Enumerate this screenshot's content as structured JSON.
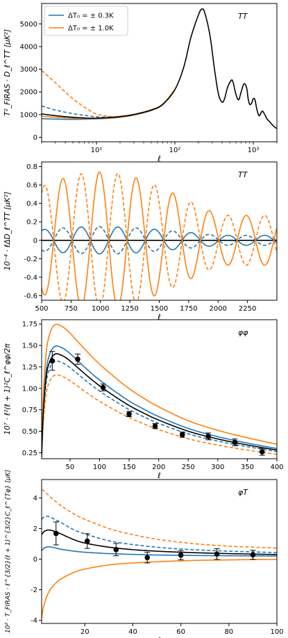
{
  "colors": {
    "blue": "#1f77b4",
    "orange": "#ff7f0e",
    "black": "#000000"
  },
  "chart_data": [
    {
      "type": "line",
      "tag": "TT",
      "xlabel": "ℓ",
      "ylabel": "T²_FIRAS · D_ℓ^TT [μK²]",
      "xscale": "log",
      "xlim": [
        2,
        2000
      ],
      "ylim": [
        -200,
        5900
      ],
      "xticks": [
        {
          "v": 10,
          "label": "10¹"
        },
        {
          "v": 100,
          "label": "10²"
        },
        {
          "v": 1000,
          "label": "10³"
        }
      ],
      "yticks": [
        0,
        1000,
        2000,
        3000,
        4000,
        5000
      ],
      "legend": {
        "placement": "top-left",
        "entries": [
          {
            "label": "ΔT₀ = ± 0.3K",
            "color": "blue"
          },
          {
            "label": "ΔT₀ = ± 1.0K",
            "color": "orange"
          }
        ]
      },
      "series": [
        {
          "color": "black",
          "dash": false,
          "x": [
            2,
            3,
            5,
            8,
            10,
            15,
            20,
            30,
            50,
            70,
            100,
            130,
            160,
            200,
            220,
            240,
            280,
            320,
            360,
            400,
            430,
            470,
            520,
            550,
            600,
            650,
            700,
            760,
            820,
            860,
            900,
            950,
            1000,
            1050,
            1100,
            1150,
            1200,
            1300,
            1400,
            1500,
            1600,
            1800,
            2000
          ],
          "y": [
            1030,
            950,
            880,
            840,
            840,
            870,
            910,
            1000,
            1200,
            1450,
            2100,
            3100,
            4400,
            5400,
            5650,
            5500,
            4500,
            3000,
            1900,
            1550,
            1700,
            2200,
            2500,
            2450,
            1900,
            1650,
            2000,
            2350,
            2200,
            1700,
            1450,
            1500,
            1700,
            1650,
            1300,
            1050,
            950,
            1150,
            1000,
            800,
            700,
            500,
            380
          ]
        },
        {
          "color": "blue",
          "dash": false,
          "x": [
            2,
            3,
            5,
            8,
            10,
            15,
            20,
            30,
            50,
            70,
            100
          ],
          "y": [
            820,
            800,
            790,
            800,
            810,
            840,
            880,
            980,
            1180,
            1440,
            2100
          ]
        },
        {
          "color": "blue",
          "dash": true,
          "x": [
            2,
            3,
            5,
            8,
            10,
            15,
            20,
            30,
            50,
            70,
            100
          ],
          "y": [
            1380,
            1200,
            1040,
            940,
            900,
            890,
            920,
            1010,
            1210,
            1460,
            2100
          ]
        },
        {
          "color": "orange",
          "dash": false,
          "x": [
            2,
            3,
            5,
            8,
            10,
            15,
            20,
            30,
            50,
            70,
            100
          ],
          "y": [
            930,
            880,
            840,
            820,
            820,
            850,
            890,
            990,
            1190,
            1440,
            2100
          ]
        },
        {
          "color": "orange",
          "dash": true,
          "x": [
            2,
            3,
            5,
            8,
            10,
            15,
            20,
            30,
            50,
            70,
            100
          ],
          "y": [
            2950,
            2400,
            1700,
            1200,
            1030,
            920,
            930,
            1010,
            1210,
            1460,
            2100
          ]
        }
      ]
    },
    {
      "type": "line",
      "tag": "TT",
      "xlabel": "ℓ",
      "ylabel": "10⁻⁴ · ℓΔD_ℓ^TT [μK²]",
      "xlim": [
        500,
        2500
      ],
      "ylim": [
        -0.65,
        0.85
      ],
      "xticks": [
        {
          "v": 500,
          "label": "500"
        },
        {
          "v": 750,
          "label": "750"
        },
        {
          "v": 1000,
          "label": "1000"
        },
        {
          "v": 1250,
          "label": "1250"
        },
        {
          "v": 1500,
          "label": "1500"
        },
        {
          "v": 1750,
          "label": "1750"
        },
        {
          "v": 2000,
          "label": "2000"
        },
        {
          "v": 2250,
          "label": "2250"
        }
      ],
      "yticks": [
        -0.6,
        -0.4,
        -0.2,
        0.0,
        0.2,
        0.4,
        0.6,
        0.8
      ],
      "wave": {
        "period": 312,
        "phase_x": 836,
        "env_peak": 0.74,
        "env_center": 1000,
        "env_min": 0.27
      },
      "series": [
        {
          "name": "",
          "color": "black",
          "dash": false,
          "osc": 0
        },
        {
          "color": "blue",
          "dash": false,
          "osc": 0.2,
          "sign": 1
        },
        {
          "color": "blue",
          "dash": true,
          "osc": 0.2,
          "sign": -1
        },
        {
          "color": "orange",
          "dash": false,
          "osc": 1.0,
          "sign": -1
        },
        {
          "color": "orange",
          "dash": true,
          "osc": 1.0,
          "sign": 1
        }
      ]
    },
    {
      "type": "line",
      "tag": "φφ",
      "xlabel": "ℓ",
      "ylabel": "10⁷ · ℓ²(ℓ + 1)²C_ℓ^φφ/2π",
      "xlim": [
        2,
        400
      ],
      "ylim": [
        0.18,
        1.8
      ],
      "xticks": [
        {
          "v": 50,
          "label": "50"
        },
        {
          "v": 100,
          "label": "100"
        },
        {
          "v": 150,
          "label": "150"
        },
        {
          "v": 200,
          "label": "200"
        },
        {
          "v": 250,
          "label": "250"
        },
        {
          "v": 300,
          "label": "300"
        },
        {
          "v": 350,
          "label": "350"
        },
        {
          "v": 400,
          "label": "400"
        }
      ],
      "yticks": [
        0.25,
        0.5,
        0.75,
        1.0,
        1.25,
        1.5,
        1.75
      ],
      "ytick_fmt": 2,
      "base": {
        "x": [
          2,
          5,
          10,
          15,
          20,
          25,
          30,
          40,
          50,
          60,
          80,
          100,
          125,
          150,
          175,
          200,
          250,
          300,
          350,
          400
        ],
        "y": [
          0.22,
          0.75,
          1.15,
          1.3,
          1.37,
          1.4,
          1.4,
          1.37,
          1.32,
          1.26,
          1.14,
          1.03,
          0.91,
          0.8,
          0.71,
          0.63,
          0.5,
          0.41,
          0.34,
          0.28
        ]
      },
      "series": [
        {
          "color": "black",
          "dash": false,
          "scale": 1.0
        },
        {
          "color": "blue",
          "dash": false,
          "scale": 1.065
        },
        {
          "color": "blue",
          "dash": true,
          "scale": 0.94
        },
        {
          "color": "orange",
          "dash": false,
          "scale": 1.245
        },
        {
          "color": "orange",
          "dash": true,
          "scale": 0.825
        }
      ],
      "points": [
        {
          "x": 20,
          "y": 1.32,
          "err": 0.11
        },
        {
          "x": 63,
          "y": 1.34,
          "err": 0.06
        },
        {
          "x": 106,
          "y": 1.01,
          "err": 0.04
        },
        {
          "x": 150,
          "y": 0.7,
          "err": 0.03
        },
        {
          "x": 194,
          "y": 0.56,
          "err": 0.03
        },
        {
          "x": 240,
          "y": 0.46,
          "err": 0.03
        },
        {
          "x": 284,
          "y": 0.44,
          "err": 0.04
        },
        {
          "x": 329,
          "y": 0.37,
          "err": 0.04
        },
        {
          "x": 375,
          "y": 0.26,
          "err": 0.04
        }
      ]
    },
    {
      "type": "line",
      "tag": "φT",
      "xlabel": "ℓ",
      "ylabel": "10² · T_FIRAS · ℓ^{3/2}(ℓ + 1)^{3/2}C_ℓ^{Tφ} [μK]",
      "xlim": [
        2,
        100
      ],
      "ylim": [
        -4.2,
        5.2
      ],
      "xticks": [
        {
          "v": 20,
          "label": "20"
        },
        {
          "v": 40,
          "label": "40"
        },
        {
          "v": 60,
          "label": "60"
        },
        {
          "v": 80,
          "label": "80"
        },
        {
          "v": 100,
          "label": "100"
        }
      ],
      "yticks": [
        -4,
        -2,
        0,
        2,
        4
      ],
      "series": [
        {
          "color": "black",
          "dash": false,
          "x": [
            2,
            3,
            4,
            5,
            6,
            8,
            10,
            15,
            20,
            30,
            40,
            50,
            60,
            70,
            80,
            90,
            100
          ],
          "y": [
            1.6,
            1.8,
            1.88,
            1.9,
            1.88,
            1.78,
            1.65,
            1.3,
            1.05,
            0.78,
            0.62,
            0.52,
            0.45,
            0.4,
            0.36,
            0.33,
            0.3
          ]
        },
        {
          "color": "blue",
          "dash": false,
          "x": [
            2,
            3,
            4,
            5,
            6,
            8,
            10,
            15,
            20,
            30,
            40,
            50,
            60,
            70,
            80,
            90,
            100
          ],
          "y": [
            0.55,
            0.72,
            0.78,
            0.8,
            0.79,
            0.72,
            0.65,
            0.53,
            0.45,
            0.36,
            0.31,
            0.27,
            0.25,
            0.23,
            0.22,
            0.21,
            0.2
          ]
        },
        {
          "color": "blue",
          "dash": true,
          "x": [
            2,
            3,
            4,
            5,
            6,
            8,
            10,
            15,
            20,
            30,
            40,
            50,
            60,
            70,
            80,
            90,
            100
          ],
          "y": [
            2.6,
            2.76,
            2.8,
            2.78,
            2.72,
            2.55,
            2.4,
            1.95,
            1.65,
            1.2,
            0.95,
            0.78,
            0.66,
            0.58,
            0.52,
            0.47,
            0.43
          ]
        },
        {
          "color": "orange",
          "dash": false,
          "x": [
            2,
            2.5,
            3,
            4,
            5,
            6,
            8,
            10,
            15,
            20,
            30,
            40,
            50,
            60,
            70,
            80,
            90,
            100
          ],
          "y": [
            -3.9,
            -3.3,
            -3.0,
            -2.5,
            -2.15,
            -1.9,
            -1.55,
            -1.3,
            -0.9,
            -0.65,
            -0.38,
            -0.25,
            -0.17,
            -0.11,
            -0.07,
            -0.05,
            -0.03,
            -0.02
          ]
        },
        {
          "color": "orange",
          "dash": true,
          "x": [
            2,
            3,
            4,
            5,
            6,
            8,
            10,
            15,
            20,
            30,
            40,
            50,
            60,
            70,
            80,
            90,
            100
          ],
          "y": [
            4.55,
            4.45,
            4.3,
            4.15,
            4.0,
            3.75,
            3.5,
            3.0,
            2.6,
            2.0,
            1.6,
            1.3,
            1.1,
            0.95,
            0.85,
            0.78,
            0.72
          ]
        }
      ],
      "points": [
        {
          "x": 8,
          "y": 1.68,
          "err": 0.75
        },
        {
          "x": 21,
          "y": 1.18,
          "err": 0.48
        },
        {
          "x": 33,
          "y": 0.62,
          "err": 0.4
        },
        {
          "x": 46,
          "y": 0.1,
          "err": 0.35
        },
        {
          "x": 60,
          "y": 0.26,
          "err": 0.3
        },
        {
          "x": 75,
          "y": 0.33,
          "err": 0.35
        },
        {
          "x": 90,
          "y": 0.28,
          "err": 0.3
        }
      ]
    }
  ]
}
